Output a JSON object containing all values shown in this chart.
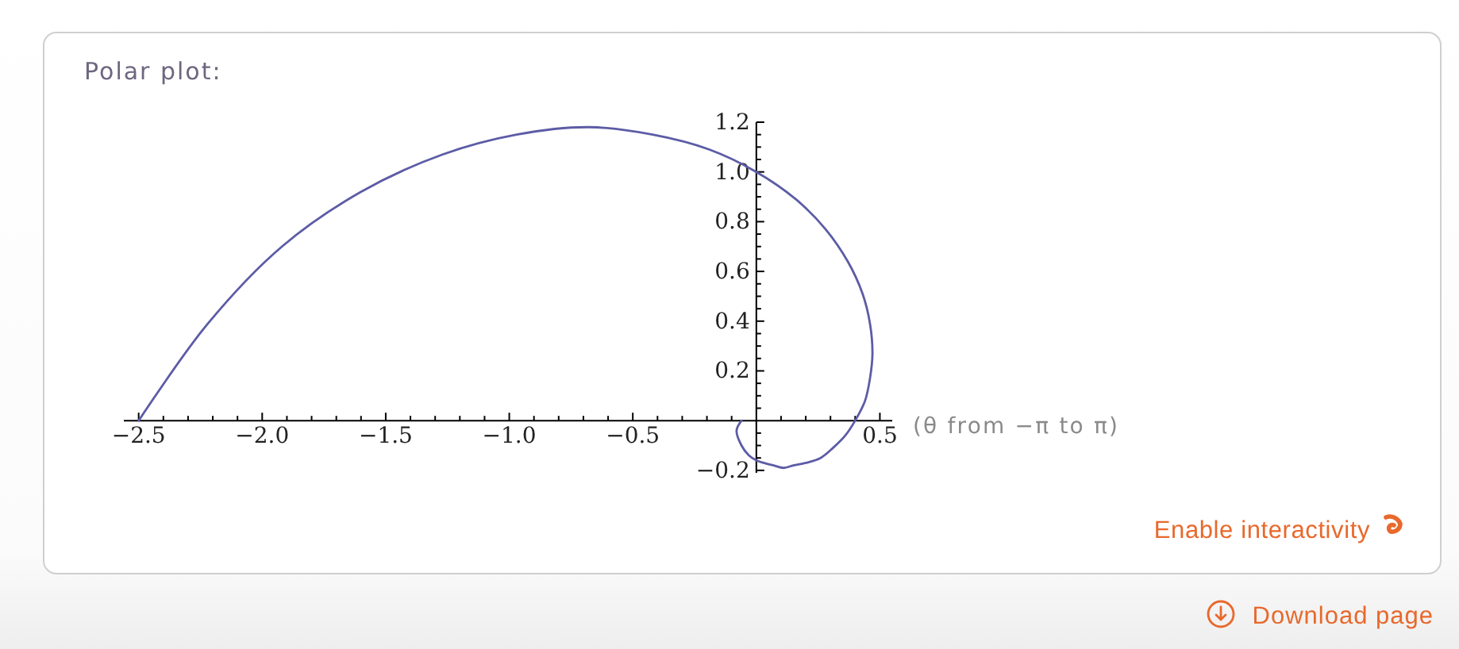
{
  "chart_data": {
    "type": "line",
    "title": "Polar plot:",
    "xlabel": "(θ from −π to π)",
    "x": [
      -0.06,
      -0.08,
      -0.06,
      -0.03,
      0,
      0.03,
      0.07,
      0.11,
      0.15,
      0.2,
      0.26,
      0.31,
      0.36,
      0.4,
      0.44,
      0.46,
      0.47,
      0.46,
      0.43,
      0.37,
      0.28,
      0.16,
      0,
      -0.19,
      -0.42,
      -0.68,
      -0.97,
      -1.27,
      -1.6,
      -1.92,
      -2.22,
      -2.5
    ],
    "values": [
      0,
      -0.04,
      -0.1,
      -0.14,
      -0.16,
      -0.17,
      -0.18,
      -0.19,
      -0.18,
      -0.17,
      -0.15,
      -0.11,
      -0.06,
      0,
      0.08,
      0.17,
      0.27,
      0.39,
      0.51,
      0.64,
      0.77,
      0.89,
      1,
      1.09,
      1.15,
      1.18,
      1.15,
      1.07,
      0.92,
      0.7,
      0.39,
      0
    ],
    "color": "#5c5ca6",
    "xlim": [
      -2.56,
      0.55
    ],
    "ylim": [
      -0.21,
      1.2
    ],
    "xticks": [
      {
        "value": -2.5,
        "label": "−2.5"
      },
      {
        "value": -2.4,
        "label": null
      },
      {
        "value": -2.3,
        "label": null
      },
      {
        "value": -2.2,
        "label": null
      },
      {
        "value": -2.1,
        "label": null
      },
      {
        "value": -2,
        "label": "−2.0"
      },
      {
        "value": -1.9,
        "label": null
      },
      {
        "value": -1.8,
        "label": null
      },
      {
        "value": -1.7,
        "label": null
      },
      {
        "value": -1.6,
        "label": null
      },
      {
        "value": -1.5,
        "label": "−1.5"
      },
      {
        "value": -1.4,
        "label": null
      },
      {
        "value": -1.3,
        "label": null
      },
      {
        "value": -1.2,
        "label": null
      },
      {
        "value": -1.1,
        "label": null
      },
      {
        "value": -1,
        "label": "−1.0"
      },
      {
        "value": -0.9,
        "label": null
      },
      {
        "value": -0.8,
        "label": null
      },
      {
        "value": -0.7,
        "label": null
      },
      {
        "value": -0.6,
        "label": null
      },
      {
        "value": -0.5,
        "label": "−0.5"
      },
      {
        "value": -0.4,
        "label": null
      },
      {
        "value": -0.3,
        "label": null
      },
      {
        "value": -0.2,
        "label": null
      },
      {
        "value": -0.1,
        "label": null
      },
      {
        "value": 0.1,
        "label": null
      },
      {
        "value": 0.2,
        "label": null
      },
      {
        "value": 0.3,
        "label": null
      },
      {
        "value": 0.4,
        "label": null
      },
      0.5
    ],
    "yticks": [
      {
        "value": -0.2,
        "label": "−0.2"
      },
      {
        "value": -0.15,
        "label": null
      },
      {
        "value": -0.1,
        "label": null
      },
      {
        "value": -0.05,
        "label": null
      },
      {
        "value": 0.05,
        "label": null
      },
      {
        "value": 0.1,
        "label": null
      },
      {
        "value": 0.15,
        "label": null
      },
      0.2,
      {
        "value": 0.25,
        "label": null
      },
      {
        "value": 0.3,
        "label": null
      },
      {
        "value": 0.35,
        "label": null
      },
      0.4,
      {
        "value": 0.45,
        "label": null
      },
      {
        "value": 0.5,
        "label": null
      },
      {
        "value": 0.55,
        "label": null
      },
      0.6,
      {
        "value": 0.65,
        "label": null
      },
      {
        "value": 0.7,
        "label": null
      },
      {
        "value": 0.75,
        "label": null
      },
      0.8,
      {
        "value": 0.85,
        "label": null
      },
      {
        "value": 0.9,
        "label": null
      },
      {
        "value": 0.95,
        "label": null
      },
      {
        "value": 1,
        "label": "1.0"
      },
      {
        "value": 1.05,
        "label": null
      },
      {
        "value": 1.1,
        "label": null
      },
      {
        "value": 1.15,
        "label": null
      },
      1.2
    ],
    "annotations": [
      "Enable interactivity",
      "Download page"
    ]
  }
}
